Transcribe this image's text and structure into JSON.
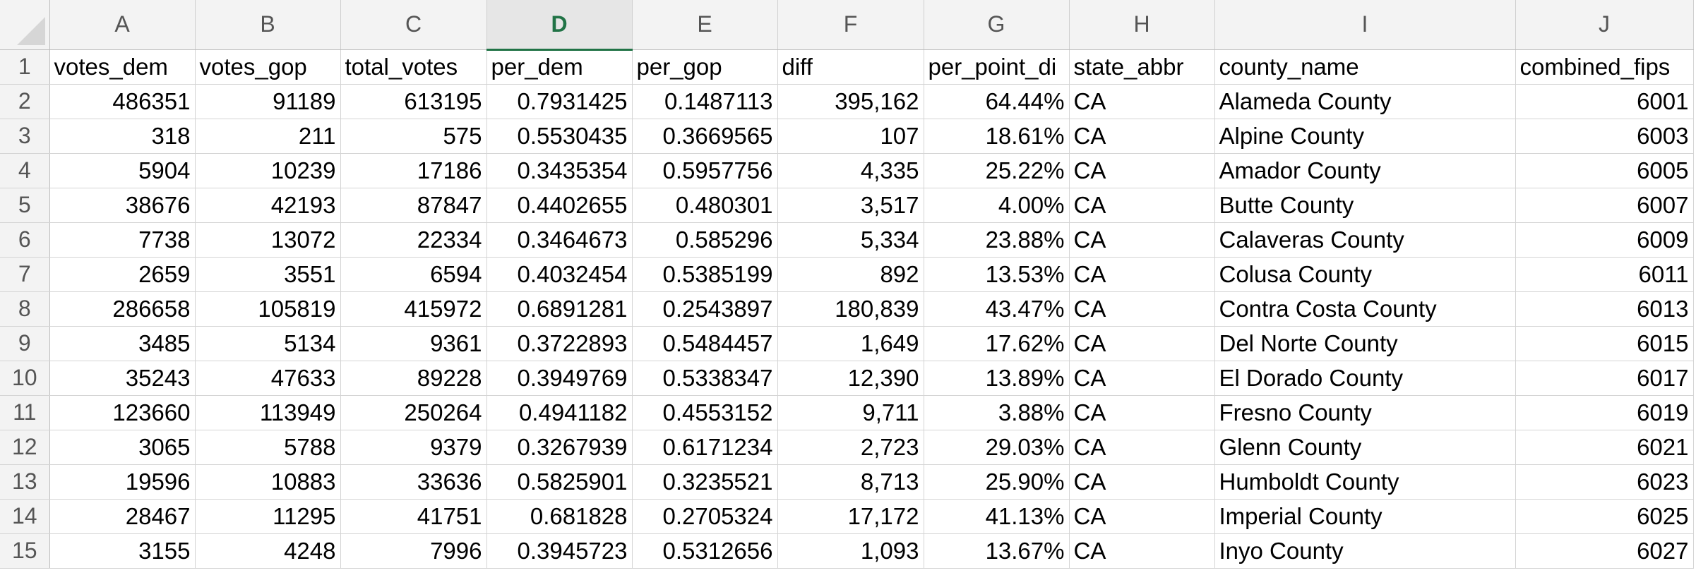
{
  "columns": [
    "A",
    "B",
    "C",
    "D",
    "E",
    "F",
    "G",
    "H",
    "I",
    "J"
  ],
  "active_column": "D",
  "rows": [
    [
      "votes_dem",
      "votes_gop",
      "total_votes",
      "per_dem",
      "per_gop",
      "diff",
      "per_point_di",
      "state_abbr",
      "county_name",
      "combined_fips"
    ],
    [
      "486351",
      "91189",
      "613195",
      "0.7931425",
      "0.1487113",
      "395,162",
      "64.44%",
      "CA",
      "Alameda County",
      "6001"
    ],
    [
      "318",
      "211",
      "575",
      "0.5530435",
      "0.3669565",
      "107",
      "18.61%",
      "CA",
      "Alpine County",
      "6003"
    ],
    [
      "5904",
      "10239",
      "17186",
      "0.3435354",
      "0.5957756",
      "4,335",
      "25.22%",
      "CA",
      "Amador County",
      "6005"
    ],
    [
      "38676",
      "42193",
      "87847",
      "0.4402655",
      "0.480301",
      "3,517",
      "4.00%",
      "CA",
      "Butte County",
      "6007"
    ],
    [
      "7738",
      "13072",
      "22334",
      "0.3464673",
      "0.585296",
      "5,334",
      "23.88%",
      "CA",
      "Calaveras County",
      "6009"
    ],
    [
      "2659",
      "3551",
      "6594",
      "0.4032454",
      "0.5385199",
      "892",
      "13.53%",
      "CA",
      "Colusa County",
      "6011"
    ],
    [
      "286658",
      "105819",
      "415972",
      "0.6891281",
      "0.2543897",
      "180,839",
      "43.47%",
      "CA",
      "Contra Costa County",
      "6013"
    ],
    [
      "3485",
      "5134",
      "9361",
      "0.3722893",
      "0.5484457",
      "1,649",
      "17.62%",
      "CA",
      "Del Norte County",
      "6015"
    ],
    [
      "35243",
      "47633",
      "89228",
      "0.3949769",
      "0.5338347",
      "12,390",
      "13.89%",
      "CA",
      "El Dorado County",
      "6017"
    ],
    [
      "123660",
      "113949",
      "250264",
      "0.4941182",
      "0.4553152",
      "9,711",
      "3.88%",
      "CA",
      "Fresno County",
      "6019"
    ],
    [
      "3065",
      "5788",
      "9379",
      "0.3267939",
      "0.6171234",
      "2,723",
      "29.03%",
      "CA",
      "Glenn County",
      "6021"
    ],
    [
      "19596",
      "10883",
      "33636",
      "0.5825901",
      "0.3235521",
      "8,713",
      "25.90%",
      "CA",
      "Humboldt County",
      "6023"
    ],
    [
      "28467",
      "11295",
      "41751",
      "0.681828",
      "0.2705324",
      "17,172",
      "41.13%",
      "CA",
      "Imperial County",
      "6025"
    ],
    [
      "3155",
      "4248",
      "7996",
      "0.3945723",
      "0.5312656",
      "1,093",
      "13.67%",
      "CA",
      "Inyo County",
      "6027"
    ]
  ]
}
